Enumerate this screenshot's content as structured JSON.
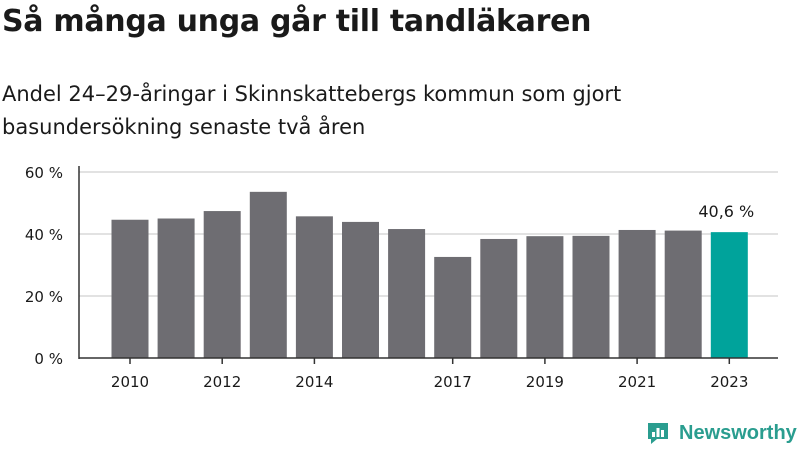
{
  "title": "Så många unga går till tandläkaren",
  "subtitle": "Andel 24–29-åringar i Skinnskattebergs kommun som gjort basundersökning senaste två åren",
  "brand": "Newsworthy",
  "colors": {
    "bar": "#6e6d72",
    "highlight": "#00a39b",
    "grid": "#d9d9d9",
    "axis": "#333333",
    "text": "#1a1a1a",
    "brand": "#2a9d8f"
  },
  "chart_data": {
    "type": "bar",
    "x": [
      2010,
      2011,
      2012,
      2013,
      2014,
      2015,
      2016,
      2017,
      2018,
      2019,
      2020,
      2021,
      2022,
      2023
    ],
    "values": [
      44.6,
      45.0,
      47.4,
      53.6,
      45.7,
      43.9,
      41.6,
      32.6,
      38.4,
      39.3,
      39.4,
      41.3,
      41.1,
      40.6
    ],
    "highlight_index": 13,
    "annotation": {
      "index": 13,
      "text": "40,6 %"
    },
    "xticks": [
      "2010",
      "2012",
      "2014",
      "2017",
      "2019",
      "2021",
      "2023"
    ],
    "ytick_values": [
      0,
      20,
      40,
      60
    ],
    "yticks": [
      "0 %",
      "20 %",
      "40 %",
      "60 %"
    ],
    "ylim": [
      0,
      60
    ],
    "grid": true
  }
}
